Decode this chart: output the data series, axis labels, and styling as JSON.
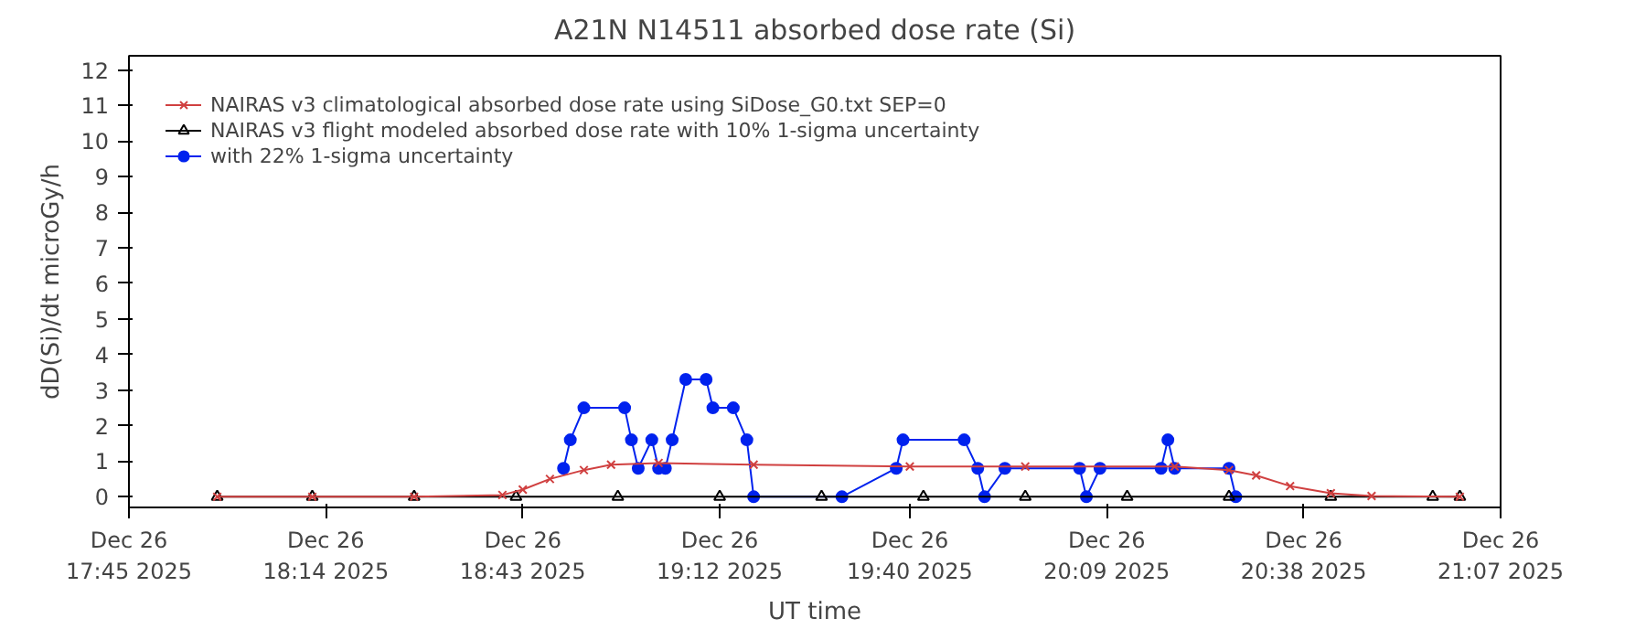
{
  "chart_data": {
    "type": "line",
    "title": "A21N N14511 absorbed dose rate (Si)",
    "xlabel": "UT time",
    "ylabel": "dD(Si)/dt microGy/h",
    "xlim": [
      "2025-12-26T17:45",
      "2025-12-26T21:07"
    ],
    "ylim": [
      -0.3,
      12.4
    ],
    "xticks": [
      {
        "value": "2025-12-26T17:45",
        "label": "Dec 26\n17:45 2025"
      },
      {
        "value": "2025-12-26T18:14",
        "label": "Dec 26\n18:14 2025"
      },
      {
        "value": "2025-12-26T18:43",
        "label": "Dec 26\n18:43 2025"
      },
      {
        "value": "2025-12-26T19:12",
        "label": "Dec 26\n19:12 2025"
      },
      {
        "value": "2025-12-26T19:40",
        "label": "Dec 26\n19:40 2025"
      },
      {
        "value": "2025-12-26T20:09",
        "label": "Dec 26\n20:09 2025"
      },
      {
        "value": "2025-12-26T20:38",
        "label": "Dec 26\n20:38 2025"
      },
      {
        "value": "2025-12-26T21:07",
        "label": "Dec 26\n21:07 2025"
      }
    ],
    "yticks": [
      0,
      1,
      2,
      3,
      4,
      5,
      6,
      7,
      8,
      9,
      10,
      11,
      12
    ],
    "grid": false,
    "legend": "top left",
    "series": [
      {
        "name": "NAIRAS v3 climatological absorbed dose rate using SiDose_G0.txt SEP=0",
        "color": "#d04040",
        "marker": "cross",
        "x": [
          "2025-12-26T17:58",
          "2025-12-26T18:12",
          "2025-12-26T18:27",
          "2025-12-26T18:40",
          "2025-12-26T18:43",
          "2025-12-26T18:47",
          "2025-12-26T18:52",
          "2025-12-26T18:56",
          "2025-12-26T19:03",
          "2025-12-26T19:17",
          "2025-12-26T19:40",
          "2025-12-26T19:57",
          "2025-12-26T20:19",
          "2025-12-26T20:27",
          "2025-12-26T20:31",
          "2025-12-26T20:36",
          "2025-12-26T20:42",
          "2025-12-26T20:48",
          "2025-12-26T21:01"
        ],
        "values": [
          0,
          0,
          0,
          0.05,
          0.2,
          0.5,
          0.75,
          0.9,
          0.95,
          0.9,
          0.85,
          0.85,
          0.85,
          0.75,
          0.6,
          0.3,
          0.1,
          0.02,
          0
        ]
      },
      {
        "name": "NAIRAS v3 flight modeled absorbed dose rate with 10% 1-sigma uncertainty",
        "color": "#000000",
        "marker": "triangle",
        "x": [
          "2025-12-26T17:58",
          "2025-12-26T18:12",
          "2025-12-26T18:27",
          "2025-12-26T18:42",
          "2025-12-26T18:57",
          "2025-12-26T19:12",
          "2025-12-26T19:27",
          "2025-12-26T19:42",
          "2025-12-26T19:57",
          "2025-12-26T20:12",
          "2025-12-26T20:27",
          "2025-12-26T20:42",
          "2025-12-26T20:57",
          "2025-12-26T21:01"
        ],
        "values": [
          0,
          0,
          0,
          0,
          0,
          0,
          0,
          0,
          0,
          0,
          0,
          0,
          0,
          0
        ]
      },
      {
        "name": "with 22% 1-sigma uncertainty",
        "color": "#0022ee",
        "marker": "circle",
        "x": [
          "2025-12-26T18:49",
          "2025-12-26T18:50",
          "2025-12-26T18:52",
          "2025-12-26T18:58",
          "2025-12-26T18:59",
          "2025-12-26T19:00",
          "2025-12-26T19:02",
          "2025-12-26T19:03",
          "2025-12-26T19:04",
          "2025-12-26T19:05",
          "2025-12-26T19:07",
          "2025-12-26T19:10",
          "2025-12-26T19:11",
          "2025-12-26T19:14",
          "2025-12-26T19:16",
          "2025-12-26T19:17",
          "2025-12-26T19:30",
          "2025-12-26T19:38",
          "2025-12-26T19:39",
          "2025-12-26T19:48",
          "2025-12-26T19:50",
          "2025-12-26T19:51",
          "2025-12-26T19:54",
          "2025-12-26T20:05",
          "2025-12-26T20:06",
          "2025-12-26T20:08",
          "2025-12-26T20:17",
          "2025-12-26T20:18",
          "2025-12-26T20:19",
          "2025-12-26T20:27",
          "2025-12-26T20:28"
        ],
        "values": [
          0.8,
          1.6,
          2.5,
          2.5,
          1.6,
          0.8,
          1.6,
          0.8,
          0.8,
          1.6,
          3.3,
          3.3,
          2.5,
          2.5,
          1.6,
          0,
          0,
          0.8,
          1.6,
          1.6,
          0.8,
          0,
          0.8,
          0.8,
          0,
          0.8,
          0.8,
          1.6,
          0.8,
          0.8,
          0
        ]
      }
    ]
  }
}
